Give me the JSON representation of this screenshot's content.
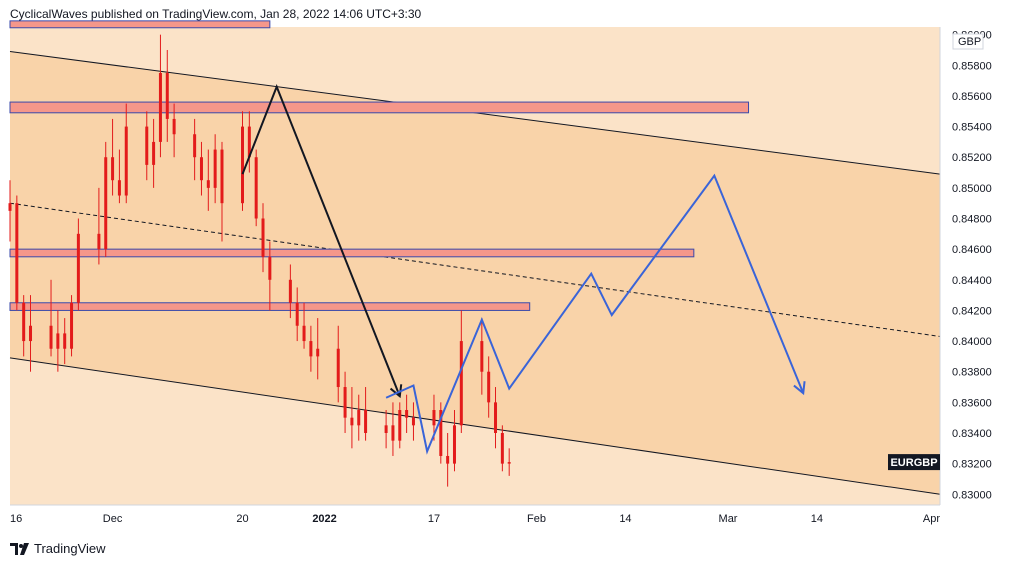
{
  "header": {
    "text": "CyclicalWaves published on TradingView.com, Jan 28, 2022 14:06 UTC+3:30"
  },
  "footer": {
    "brand": "TradingView"
  },
  "chart_data": {
    "type": "candlestick",
    "symbol": "EURGBP",
    "currency": "GBP",
    "colors": {
      "background": "#fbe3c8",
      "channel_fill": "#f9d3a9",
      "zone_fill": "#f5978a",
      "zone_border": "#3949ab",
      "candle": "#e31b1b",
      "projection": "#3a64d8",
      "arrow": "#131722",
      "tag": "#131722"
    },
    "x_ticks": [
      "16",
      "Dec",
      "20",
      "2022",
      "17",
      "Feb",
      "14",
      "Mar",
      "14",
      "Apr"
    ],
    "y_ticks": [
      "0.83000",
      "0.83200",
      "0.83400",
      "0.83600",
      "0.83800",
      "0.84000",
      "0.84200",
      "0.84400",
      "0.84600",
      "0.84800",
      "0.85000",
      "0.85200",
      "0.85400",
      "0.85600",
      "0.85800",
      "0.86000"
    ],
    "y_range": [
      0.8293,
      0.8605
    ],
    "price_close": 0.8321,
    "channel": {
      "upper": {
        "from": [
          "2021-11-16",
          0.8589
        ],
        "to": [
          "2022-04-01",
          0.8509
        ]
      },
      "lower": {
        "from": [
          "2021-11-16",
          0.8389
        ],
        "to": [
          "2022-04-01",
          0.83
        ]
      },
      "mid": {
        "from": [
          "2021-11-16",
          0.849
        ],
        "to": [
          "2022-04-01",
          0.8403
        ]
      }
    },
    "zones": [
      {
        "from": "2021-11-16",
        "to": "2021-12-24",
        "high": 0.8609,
        "low": 0.86045
      },
      {
        "from": "2021-11-16",
        "to": "2022-03-04",
        "high": 0.8556,
        "low": 0.8549
      },
      {
        "from": "2021-11-16",
        "to": "2022-02-24",
        "high": 0.846,
        "low": 0.8455
      },
      {
        "from": "2021-11-16",
        "to": "2022-01-31",
        "high": 0.8425,
        "low": 0.842
      }
    ],
    "arrow_path": [
      [
        "2021-12-20",
        0.8509
      ],
      [
        "2021-12-25",
        0.8566
      ],
      [
        "2022-01-12",
        0.8364
      ]
    ],
    "projection_path": [
      [
        "2022-01-10",
        0.8363
      ],
      [
        "2022-01-14",
        0.8371
      ],
      [
        "2022-01-16",
        0.8328
      ],
      [
        "2022-01-24",
        0.8414
      ],
      [
        "2022-01-28",
        0.8369
      ],
      [
        "2022-02-09",
        0.8444
      ],
      [
        "2022-02-12",
        0.8417
      ],
      [
        "2022-02-27",
        0.8508
      ],
      [
        "2022-03-12",
        0.8366
      ]
    ],
    "candles": [
      [
        "2021-11-16",
        0.8485,
        0.8505,
        0.8465,
        0.849
      ],
      [
        "2021-11-17",
        0.849,
        0.8495,
        0.842,
        0.8425
      ],
      [
        "2021-11-18",
        0.8425,
        0.843,
        0.839,
        0.84
      ],
      [
        "2021-11-19",
        0.84,
        0.843,
        0.838,
        0.841
      ],
      [
        "2021-11-22",
        0.841,
        0.844,
        0.839,
        0.8395
      ],
      [
        "2021-11-23",
        0.8395,
        0.842,
        0.838,
        0.8405
      ],
      [
        "2021-11-24",
        0.8405,
        0.8415,
        0.8385,
        0.8395
      ],
      [
        "2021-11-25",
        0.8395,
        0.843,
        0.839,
        0.8425
      ],
      [
        "2021-11-26",
        0.8425,
        0.848,
        0.842,
        0.847
      ],
      [
        "2021-11-29",
        0.847,
        0.85,
        0.845,
        0.846
      ],
      [
        "2021-11-30",
        0.846,
        0.853,
        0.8455,
        0.852
      ],
      [
        "2021-12-01",
        0.852,
        0.8545,
        0.8495,
        0.8505
      ],
      [
        "2021-12-02",
        0.8505,
        0.8525,
        0.849,
        0.8495
      ],
      [
        "2021-12-03",
        0.8495,
        0.8555,
        0.849,
        0.854
      ],
      [
        "2021-12-06",
        0.854,
        0.855,
        0.8505,
        0.8515
      ],
      [
        "2021-12-07",
        0.8515,
        0.8545,
        0.85,
        0.853
      ],
      [
        "2021-12-08",
        0.853,
        0.86,
        0.852,
        0.8575
      ],
      [
        "2021-12-09",
        0.8575,
        0.859,
        0.853,
        0.8545
      ],
      [
        "2021-12-10",
        0.8545,
        0.8555,
        0.852,
        0.8535
      ],
      [
        "2021-12-13",
        0.8535,
        0.8545,
        0.8505,
        0.852
      ],
      [
        "2021-12-14",
        0.852,
        0.853,
        0.8495,
        0.8505
      ],
      [
        "2021-12-15",
        0.8505,
        0.8525,
        0.8485,
        0.85
      ],
      [
        "2021-12-16",
        0.85,
        0.8535,
        0.849,
        0.8525
      ],
      [
        "2021-12-17",
        0.8525,
        0.853,
        0.8465,
        0.849
      ],
      [
        "2021-12-20",
        0.849,
        0.855,
        0.8485,
        0.854
      ],
      [
        "2021-12-21",
        0.854,
        0.855,
        0.851,
        0.852
      ],
      [
        "2021-12-22",
        0.852,
        0.8525,
        0.8475,
        0.848
      ],
      [
        "2021-12-23",
        0.848,
        0.849,
        0.8445,
        0.8455
      ],
      [
        "2021-12-24",
        0.8455,
        0.8465,
        0.842,
        0.844
      ],
      [
        "2021-12-27",
        0.844,
        0.845,
        0.8415,
        0.8425
      ],
      [
        "2021-12-28",
        0.8425,
        0.8435,
        0.84,
        0.841
      ],
      [
        "2021-12-29",
        0.841,
        0.8425,
        0.8395,
        0.84
      ],
      [
        "2021-12-30",
        0.84,
        0.841,
        0.838,
        0.839
      ],
      [
        "2021-12-31",
        0.839,
        0.8415,
        0.8375,
        0.8395
      ],
      [
        "2022-01-03",
        0.8395,
        0.841,
        0.836,
        0.837
      ],
      [
        "2022-01-04",
        0.837,
        0.838,
        0.834,
        0.835
      ],
      [
        "2022-01-05",
        0.835,
        0.837,
        0.833,
        0.8345
      ],
      [
        "2022-01-06",
        0.8345,
        0.8365,
        0.8335,
        0.8355
      ],
      [
        "2022-01-07",
        0.8355,
        0.837,
        0.8335,
        0.834
      ],
      [
        "2022-01-10",
        0.834,
        0.8355,
        0.833,
        0.8345
      ],
      [
        "2022-01-11",
        0.8345,
        0.836,
        0.8325,
        0.8335
      ],
      [
        "2022-01-12",
        0.8335,
        0.836,
        0.833,
        0.8355
      ],
      [
        "2022-01-13",
        0.8355,
        0.8365,
        0.834,
        0.835
      ],
      [
        "2022-01-14",
        0.835,
        0.836,
        0.8335,
        0.8345
      ],
      [
        "2022-01-17",
        0.8345,
        0.8365,
        0.8335,
        0.8355
      ],
      [
        "2022-01-18",
        0.8355,
        0.836,
        0.832,
        0.8325
      ],
      [
        "2022-01-19",
        0.8325,
        0.834,
        0.8305,
        0.832
      ],
      [
        "2022-01-20",
        0.832,
        0.8355,
        0.8315,
        0.8345
      ],
      [
        "2022-01-21",
        0.8345,
        0.842,
        0.834,
        0.84
      ],
      [
        "2022-01-24",
        0.84,
        0.8415,
        0.8365,
        0.838
      ],
      [
        "2022-01-25",
        0.838,
        0.839,
        0.835,
        0.836
      ],
      [
        "2022-01-26",
        0.836,
        0.837,
        0.833,
        0.834
      ],
      [
        "2022-01-27",
        0.834,
        0.8345,
        0.8315,
        0.832
      ],
      [
        "2022-01-28",
        0.832,
        0.833,
        0.8312,
        0.8321
      ]
    ]
  }
}
